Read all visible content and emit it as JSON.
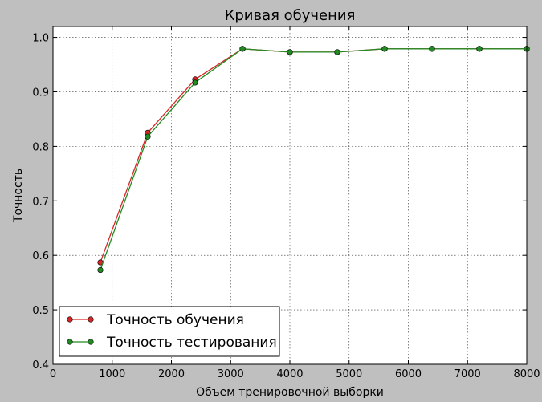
{
  "chart_data": {
    "type": "line",
    "title": "Кривая обучения",
    "xlabel": "Объем тренировочной выборки",
    "ylabel": "Точность",
    "xlim": [
      0,
      8000
    ],
    "ylim": [
      0.4,
      1.02
    ],
    "xticks": [
      0,
      1000,
      2000,
      3000,
      4000,
      5000,
      6000,
      7000,
      8000
    ],
    "xtick_labels": [
      "0",
      "1000",
      "2000",
      "3000",
      "4000",
      "5000",
      "6000",
      "7000",
      "8000"
    ],
    "yticks": [
      0.4,
      0.5,
      0.6,
      0.7,
      0.8,
      0.9,
      1.0
    ],
    "ytick_labels": [
      "0.4",
      "0.5",
      "0.6",
      "0.7",
      "0.8",
      "0.9",
      "1.0"
    ],
    "grid": true,
    "legend_position": "bottom-left",
    "x": [
      800,
      1600,
      2400,
      3200,
      4000,
      4800,
      5600,
      6400,
      7200,
      8000
    ],
    "series": [
      {
        "name": "Точность обучения",
        "color": "#d62728",
        "values": [
          0.587,
          0.825,
          0.923,
          0.979,
          0.973,
          0.973,
          0.979,
          0.979,
          0.979,
          0.979
        ]
      },
      {
        "name": "Точность тестирования",
        "color": "#228b22",
        "values": [
          0.573,
          0.818,
          0.917,
          0.979,
          0.973,
          0.973,
          0.979,
          0.979,
          0.979,
          0.979
        ]
      }
    ]
  }
}
